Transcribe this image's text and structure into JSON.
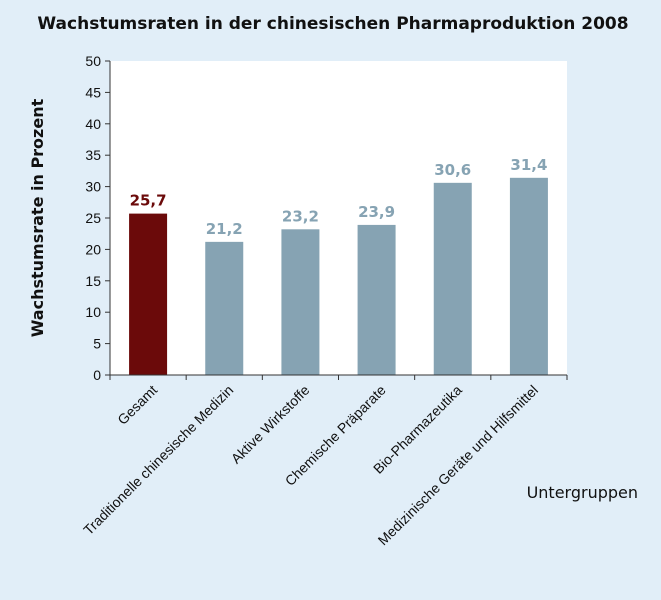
{
  "chart_data": {
    "type": "bar",
    "title": "Wachstumsraten in der chinesischen Pharmaproduktion 2008",
    "xlabel": "Untergruppen",
    "ylabel": "Wachstumsrate in Prozent",
    "ylim": [
      0,
      50
    ],
    "yticks": [
      "0",
      "5",
      "10",
      "15",
      "20",
      "25",
      "30",
      "35",
      "40",
      "45",
      "50"
    ],
    "grid": false,
    "categories": [
      "Gesamt",
      "Traditionelle chinesische Medizin",
      "Aktive Wirkstoffe",
      "Chemische Präparate",
      "Bio-Pharmazeutika",
      "Medizinische Geräte und Hilfsmittel"
    ],
    "values": [
      25.7,
      21.2,
      23.2,
      23.9,
      30.6,
      31.4
    ],
    "value_labels": [
      "25,7",
      "21,2",
      "23,2",
      "23,9",
      "30,6",
      "31,4"
    ],
    "colors": [
      "#6b0a0a",
      "#86a3b3",
      "#86a3b3",
      "#86a3b3",
      "#86a3b3",
      "#86a3b3"
    ],
    "label_colors": [
      "#6b0a0a",
      "#86a3b3",
      "#86a3b3",
      "#86a3b3",
      "#86a3b3",
      "#86a3b3"
    ],
    "plot_background": "#ffffff"
  }
}
